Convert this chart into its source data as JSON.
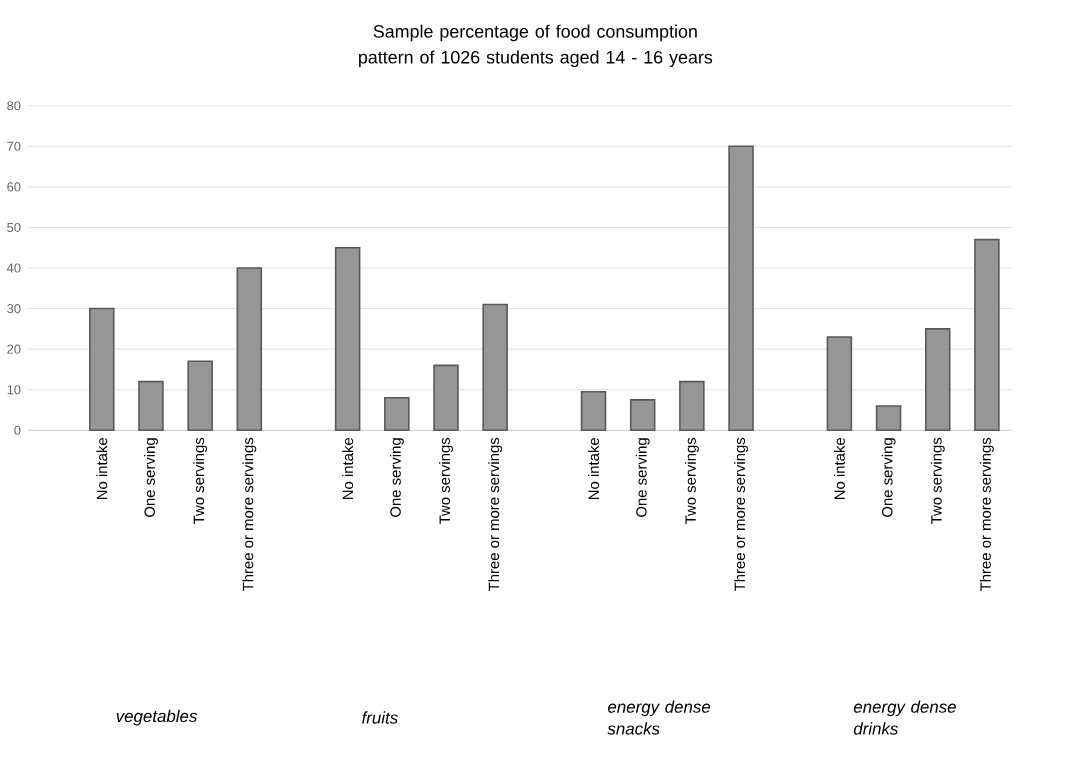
{
  "chart_data": {
    "type": "bar",
    "title": "Sample percentage of food consumption pattern of 1026 students aged 14 - 16 years",
    "categories": [
      null,
      "No intake",
      "One serving",
      "Two servings",
      "Three or more servings",
      null,
      "No intake",
      "One serving",
      "Two servings",
      "Three or more servings",
      null,
      "No intake",
      "One serving",
      "Two servings",
      "Three or more servings",
      null,
      "No intake",
      "One serving",
      "Two servings",
      "Three or more servings"
    ],
    "values": [
      null,
      30,
      12,
      17,
      40,
      null,
      45,
      8,
      16,
      31,
      null,
      9.5,
      7.5,
      12,
      70,
      null,
      23,
      6,
      25,
      47
    ],
    "color": "#969696",
    "ylim": [
      0,
      80
    ],
    "yticks": [
      0,
      10,
      20,
      30,
      40,
      50,
      60,
      70,
      80
    ],
    "grid": "y",
    "annotations": [
      "vegetables",
      "fruits",
      "energy dense snacks",
      "energy dense drinks"
    ]
  }
}
